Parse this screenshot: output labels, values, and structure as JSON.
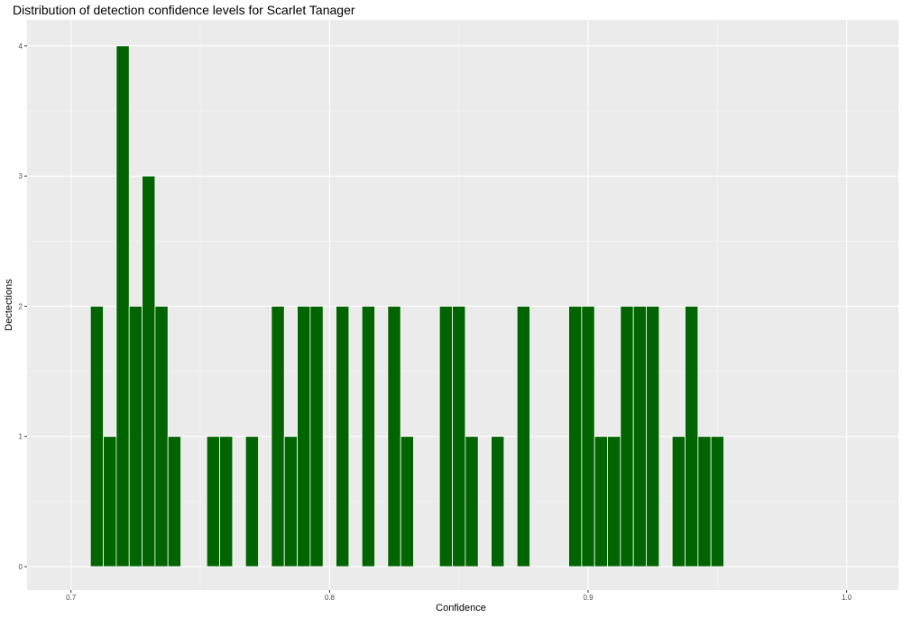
{
  "chart_data": {
    "type": "bar",
    "title": "Distribution of detection confidence levels for Scarlet Tanager",
    "xlabel": "Confidence",
    "ylabel": "Dectections",
    "xlim": [
      0.683,
      1.02
    ],
    "ylim": [
      -0.18,
      4.2
    ],
    "x_ticks": [
      "0.7",
      "0.8",
      "0.9",
      "1.0"
    ],
    "y_ticks": [
      "0",
      "1",
      "2",
      "3",
      "4"
    ],
    "bin_width": 0.005,
    "bar_color": "#006400",
    "panel_color": "#EBEBEB",
    "grid": true,
    "x": [
      0.71,
      0.715,
      0.72,
      0.725,
      0.73,
      0.735,
      0.74,
      0.745,
      0.75,
      0.755,
      0.76,
      0.765,
      0.77,
      0.775,
      0.78,
      0.785,
      0.79,
      0.795,
      0.8,
      0.805,
      0.81,
      0.815,
      0.82,
      0.825,
      0.83,
      0.835,
      0.84,
      0.845,
      0.85,
      0.855,
      0.86,
      0.865,
      0.87,
      0.875,
      0.88,
      0.885,
      0.89,
      0.895,
      0.9,
      0.905,
      0.91,
      0.915,
      0.92,
      0.925,
      0.93,
      0.935,
      0.94,
      0.945,
      0.95
    ],
    "values": [
      2,
      1,
      4,
      2,
      3,
      2,
      1,
      0,
      0,
      1,
      1,
      0,
      1,
      0,
      2,
      1,
      2,
      2,
      0,
      2,
      0,
      2,
      0,
      2,
      1,
      0,
      0,
      2,
      2,
      1,
      0,
      1,
      0,
      2,
      0,
      0,
      0,
      2,
      2,
      1,
      1,
      2,
      2,
      2,
      0,
      1,
      2,
      1,
      1
    ]
  }
}
